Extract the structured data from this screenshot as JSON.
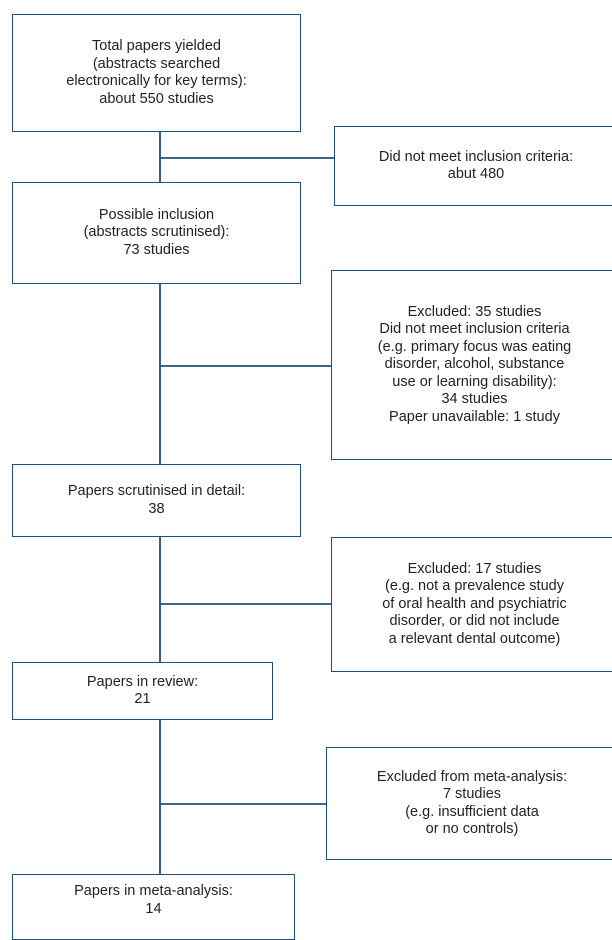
{
  "boxes": {
    "total": {
      "lines": [
        "Total papers yielded",
        "(abstracts searched",
        "electronically for key terms):",
        "about 550 studies"
      ]
    },
    "excl1": {
      "lines": [
        "Did not meet inclusion criteria:",
        "abut 480"
      ]
    },
    "possible": {
      "lines": [
        "Possible inclusion",
        "(abstracts scrutinised):",
        "73 studies"
      ]
    },
    "excl2": {
      "lines": [
        "Excluded: 35 studies",
        "Did not meet inclusion criteria",
        "(e.g. primary focus was eating",
        "disorder, alcohol, substance",
        "use or learning disability):",
        "34 studies",
        "Paper unavailable: 1 study"
      ]
    },
    "detail": {
      "lines": [
        "Papers scrutinised in detail:",
        "38"
      ]
    },
    "excl3": {
      "lines": [
        "Excluded: 17 studies",
        "(e.g. not a prevalence study",
        "of oral health and psychiatric",
        "disorder, or did not include",
        "a relevant dental outcome)"
      ]
    },
    "review": {
      "lines": [
        "Papers in review:",
        "21"
      ]
    },
    "excl4": {
      "lines": [
        "Excluded from meta-analysis:",
        "7 studies",
        "(e.g. insufficient data",
        "or no controls)"
      ]
    },
    "meta": {
      "lines": [
        "Papers in meta-analysis:",
        "14"
      ]
    }
  }
}
